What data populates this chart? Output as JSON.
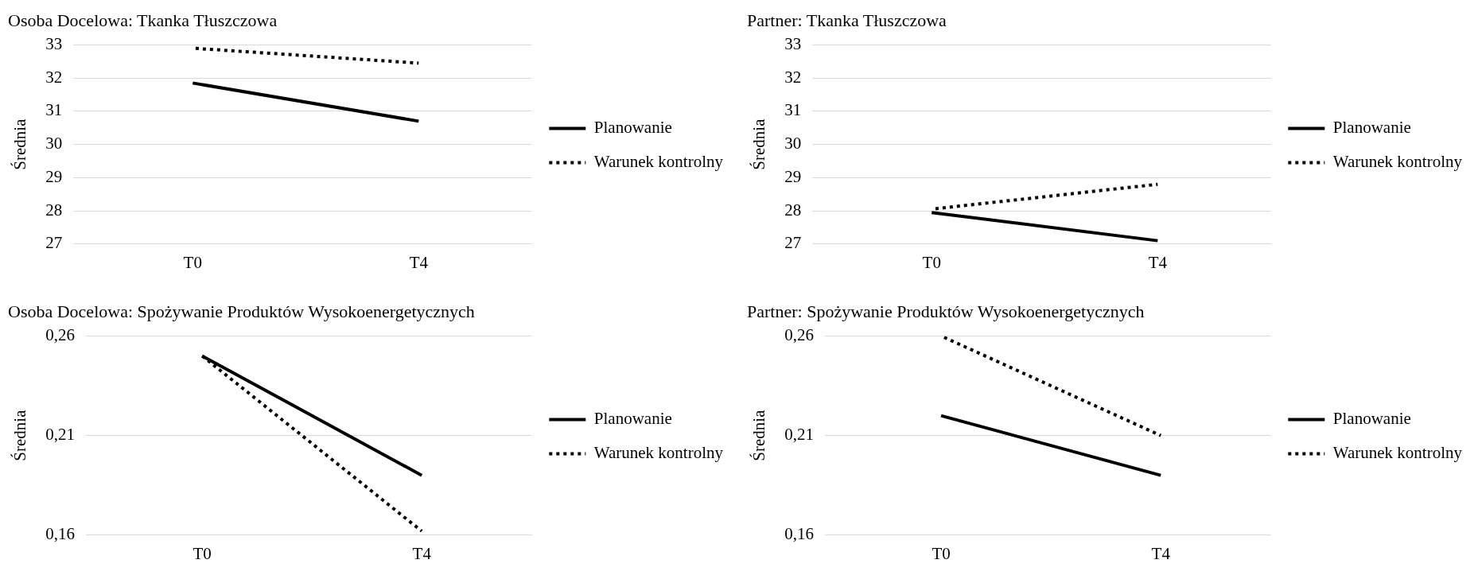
{
  "chart_data": [
    {
      "type": "line",
      "title": "Osoba Docelowa: Tkanka Tłuszczowa",
      "ylabel": "Średnia",
      "categories": [
        "T0",
        "T4"
      ],
      "ylim": [
        27,
        33
      ],
      "yticks": [
        27,
        28,
        29,
        30,
        31,
        32,
        33
      ],
      "grid": "y",
      "legend": "right",
      "marker": "none",
      "series": [
        {
          "name": "Planowanie",
          "color": "#000000",
          "line_style": "solid",
          "values": [
            31.85,
            30.7
          ]
        },
        {
          "name": "Warunek kontrolny",
          "color": "#000000",
          "line_style": "dotted",
          "values": [
            32.9,
            32.45
          ]
        }
      ]
    },
    {
      "type": "line",
      "title": "Partner: Tkanka Tłuszczowa",
      "ylabel": "Średnia",
      "categories": [
        "T0",
        "T4"
      ],
      "ylim": [
        27,
        33
      ],
      "yticks": [
        27,
        28,
        29,
        30,
        31,
        32,
        33
      ],
      "grid": "y",
      "legend": "right",
      "marker": "none",
      "series": [
        {
          "name": "Planowanie",
          "color": "#000000",
          "line_style": "solid",
          "values": [
            27.95,
            27.1
          ]
        },
        {
          "name": "Warunek kontrolny",
          "color": "#000000",
          "line_style": "dotted",
          "values": [
            28.05,
            28.8
          ]
        }
      ]
    },
    {
      "type": "line",
      "title": "Osoba Docelowa: Spożywanie Produktów Wysokoenergetycznych",
      "ylabel": "Średnia",
      "categories": [
        "T0",
        "T4"
      ],
      "ylim": [
        0.16,
        0.26
      ],
      "yticks": [
        {
          "value": 0.16,
          "label": "0,16"
        },
        {
          "value": 0.21,
          "label": "0,21"
        },
        {
          "value": 0.26,
          "label": "0,26"
        }
      ],
      "grid": "y",
      "legend": "right",
      "marker": "none",
      "series": [
        {
          "name": "Planowanie",
          "color": "#000000",
          "line_style": "solid",
          "values": [
            0.25,
            0.19
          ]
        },
        {
          "name": "Warunek kontrolny",
          "color": "#000000",
          "line_style": "dotted",
          "values": [
            0.25,
            0.162
          ]
        }
      ]
    },
    {
      "type": "line",
      "title": "Partner: Spożywanie Produktów Wysokoenergetycznych",
      "ylabel": "Średnia",
      "categories": [
        "T0",
        "T4"
      ],
      "ylim": [
        0.16,
        0.26
      ],
      "yticks": [
        {
          "value": 0.16,
          "label": "0,16"
        },
        {
          "value": 0.21,
          "label": "0,21"
        },
        {
          "value": 0.26,
          "label": "0,26"
        }
      ],
      "grid": "y",
      "legend": "right",
      "marker": "none",
      "series": [
        {
          "name": "Planowanie",
          "color": "#000000",
          "line_style": "solid",
          "values": [
            0.22,
            0.19
          ]
        },
        {
          "name": "Warunek kontrolny",
          "color": "#000000",
          "line_style": "dotted",
          "values": [
            0.26,
            0.21
          ]
        }
      ]
    }
  ]
}
